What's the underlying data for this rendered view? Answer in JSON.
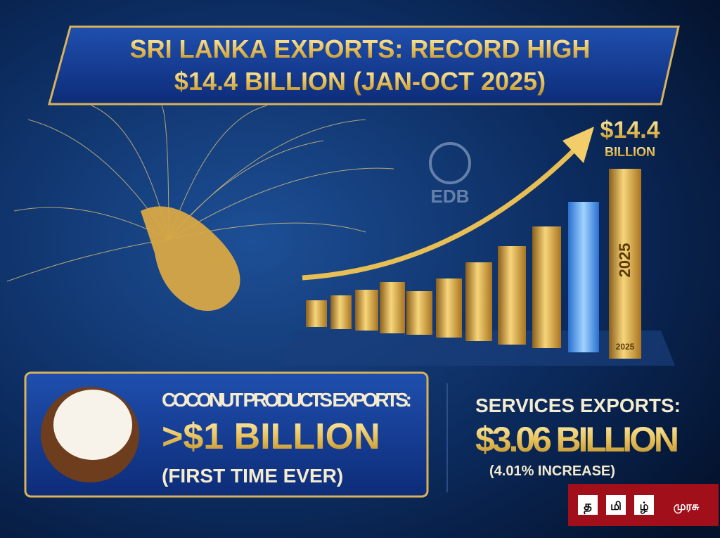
{
  "header": {
    "title_line1": "SRI LANKA EXPORTS: RECORD HIGH",
    "title_line2": "$14.4 BILLION (JAN-OCT 2025)"
  },
  "growth_chart": {
    "callout_value": "$14.4",
    "callout_unit": "BILLION",
    "bar_label_vertical": "2025",
    "bar_label_base": "2025"
  },
  "watermark": "EDB",
  "coconut": {
    "heading": "COCONUT PRODUCTS EXPORTS:",
    "value": ">$1 BILLION",
    "note": "(FIRST TIME EVER)"
  },
  "services": {
    "heading": "SERVICES EXPORTS:",
    "value": "$3.06 BILLION",
    "note": "(4.01% INCREASE)"
  },
  "logo": {
    "parts": [
      "த",
      "மி",
      "ழ்",
      "முரசு"
    ]
  }
}
